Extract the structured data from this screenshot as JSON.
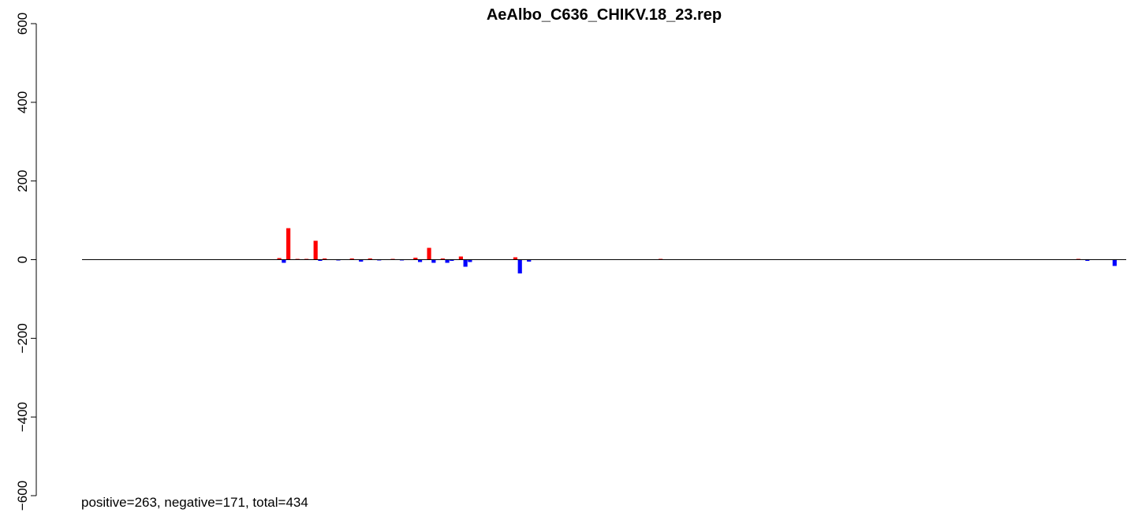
{
  "chart_data": {
    "type": "bar",
    "title": "AeAlbo_C636_CHIKV.18_23.rep",
    "xlabel": "",
    "ylabel": "",
    "ylim": [
      -600,
      600
    ],
    "y_ticks": [
      600,
      400,
      200,
      0,
      -200,
      -400,
      -600
    ],
    "y_tick_labels": [
      "600",
      "400",
      "200",
      "0",
      "−200",
      "−400",
      "−600"
    ],
    "x_range": [
      1,
      230
    ],
    "annotation": "positive=263, negative=171, total=434",
    "colors": {
      "positive": "#ff0000",
      "negative": "#0000ff",
      "baseline": "#000000"
    },
    "series": [
      {
        "name": "positive",
        "color": "#ff0000",
        "points": [
          {
            "x": 44,
            "y": 4
          },
          {
            "x": 46,
            "y": 80
          },
          {
            "x": 48,
            "y": 2
          },
          {
            "x": 50,
            "y": 2
          },
          {
            "x": 52,
            "y": 48
          },
          {
            "x": 54,
            "y": 3
          },
          {
            "x": 60,
            "y": 3
          },
          {
            "x": 64,
            "y": 3
          },
          {
            "x": 69,
            "y": 2
          },
          {
            "x": 74,
            "y": 5
          },
          {
            "x": 77,
            "y": 30
          },
          {
            "x": 80,
            "y": 3
          },
          {
            "x": 84,
            "y": 8
          },
          {
            "x": 96,
            "y": 6
          },
          {
            "x": 128,
            "y": 2
          },
          {
            "x": 220,
            "y": 2
          }
        ]
      },
      {
        "name": "negative",
        "color": "#0000ff",
        "points": [
          {
            "x": 45,
            "y": -8
          },
          {
            "x": 53,
            "y": -3
          },
          {
            "x": 57,
            "y": -2
          },
          {
            "x": 62,
            "y": -5
          },
          {
            "x": 66,
            "y": -2
          },
          {
            "x": 71,
            "y": -2
          },
          {
            "x": 75,
            "y": -6
          },
          {
            "x": 78,
            "y": -8
          },
          {
            "x": 81,
            "y": -8
          },
          {
            "x": 82,
            "y": -3
          },
          {
            "x": 85,
            "y": -18
          },
          {
            "x": 86,
            "y": -6
          },
          {
            "x": 97,
            "y": -35
          },
          {
            "x": 99,
            "y": -5
          },
          {
            "x": 222,
            "y": -3
          },
          {
            "x": 228,
            "y": -16
          }
        ]
      }
    ]
  }
}
